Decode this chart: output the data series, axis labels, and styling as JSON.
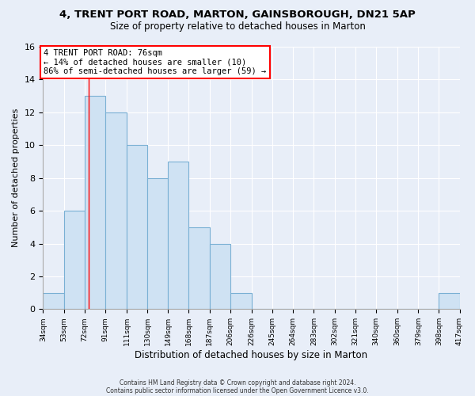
{
  "title": "4, TRENT PORT ROAD, MARTON, GAINSBOROUGH, DN21 5AP",
  "subtitle": "Size of property relative to detached houses in Marton",
  "xlabel": "Distribution of detached houses by size in Marton",
  "ylabel": "Number of detached properties",
  "footnote1": "Contains HM Land Registry data © Crown copyright and database right 2024.",
  "footnote2": "Contains public sector information licensed under the Open Government Licence v3.0.",
  "bin_edges": [
    34,
    53,
    72,
    91,
    111,
    130,
    149,
    168,
    187,
    206,
    226,
    245,
    264,
    283,
    302,
    321,
    340,
    360,
    379,
    398,
    417
  ],
  "bar_heights": [
    1,
    6,
    13,
    12,
    10,
    8,
    9,
    5,
    4,
    1,
    0,
    0,
    0,
    0,
    0,
    0,
    0,
    0,
    0,
    1
  ],
  "bar_color": "#cfe2f3",
  "bar_edge_color": "#7ab0d4",
  "property_line_x": 76,
  "annotation_text_line1": "4 TRENT PORT ROAD: 76sqm",
  "annotation_text_line2": "← 14% of detached houses are smaller (10)",
  "annotation_text_line3": "86% of semi-detached houses are larger (59) →",
  "ylim": [
    0,
    16
  ],
  "background_color": "#e8eef8"
}
